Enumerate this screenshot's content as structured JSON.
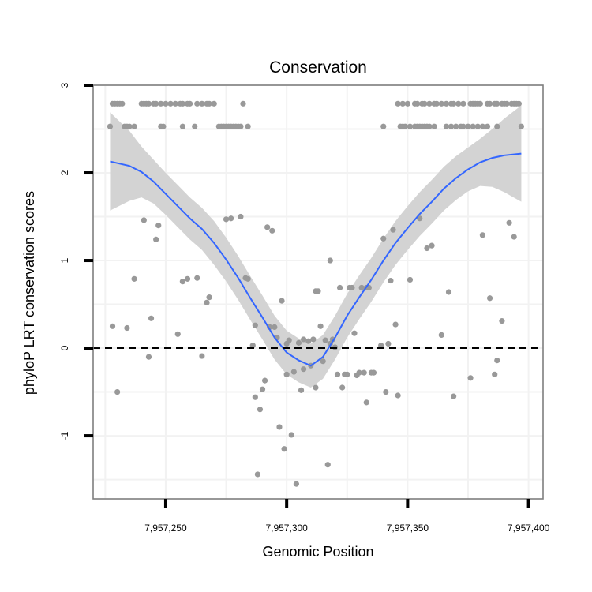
{
  "chart_data": {
    "type": "scatter",
    "title": "Conservation",
    "xlabel": "Genomic Position",
    "ylabel": "phyloP LRT conservation scores",
    "xlim": [
      7957220,
      7957406
    ],
    "ylim": [
      -1.72,
      3.0
    ],
    "x_ticks": [
      7957250,
      7957300,
      7957350,
      7957400
    ],
    "x_tick_labels": [
      "7,957,250",
      "7,957,300",
      "7,957,350",
      "7,957,400"
    ],
    "y_ticks": [
      -1,
      0,
      1,
      2,
      3
    ],
    "y_tick_labels": [
      "-1",
      "0",
      "1",
      "2",
      "3"
    ],
    "reference_line": {
      "y": 0,
      "style": "dashed"
    },
    "grid": true,
    "series": [
      {
        "name": "points",
        "kind": "scatter",
        "color": "#999999",
        "points": [
          [
            7957227,
            2.53
          ],
          [
            7957228,
            2.79
          ],
          [
            7957229,
            2.79
          ],
          [
            7957230,
            2.79
          ],
          [
            7957231,
            2.79
          ],
          [
            7957232,
            2.79
          ],
          [
            7957233,
            2.53
          ],
          [
            7957234,
            2.53
          ],
          [
            7957235,
            2.53
          ],
          [
            7957237,
            2.53
          ],
          [
            7957240,
            2.79
          ],
          [
            7957241,
            2.79
          ],
          [
            7957242,
            2.79
          ],
          [
            7957243,
            2.79
          ],
          [
            7957245,
            2.79
          ],
          [
            7957246,
            2.79
          ],
          [
            7957248,
            2.79
          ],
          [
            7957250,
            2.79
          ],
          [
            7957252,
            2.79
          ],
          [
            7957254,
            2.79
          ],
          [
            7957256,
            2.79
          ],
          [
            7957257,
            2.79
          ],
          [
            7957259,
            2.79
          ],
          [
            7957260,
            2.79
          ],
          [
            7957263,
            2.79
          ],
          [
            7957265,
            2.79
          ],
          [
            7957267,
            2.79
          ],
          [
            7957268,
            2.79
          ],
          [
            7957270,
            2.79
          ],
          [
            7957282,
            2.79
          ],
          [
            7957248,
            2.53
          ],
          [
            7957249,
            2.53
          ],
          [
            7957257,
            2.53
          ],
          [
            7957262,
            2.53
          ],
          [
            7957272,
            2.53
          ],
          [
            7957273,
            2.53
          ],
          [
            7957274,
            2.53
          ],
          [
            7957275,
            2.53
          ],
          [
            7957276,
            2.53
          ],
          [
            7957277,
            2.53
          ],
          [
            7957278,
            2.53
          ],
          [
            7957279,
            2.53
          ],
          [
            7957280,
            2.53
          ],
          [
            7957281,
            2.53
          ],
          [
            7957284,
            2.53
          ],
          [
            7957228,
            0.25
          ],
          [
            7957230,
            -0.5
          ],
          [
            7957234,
            0.23
          ],
          [
            7957237,
            0.79
          ],
          [
            7957241,
            1.46
          ],
          [
            7957243,
            -0.1
          ],
          [
            7957244,
            0.34
          ],
          [
            7957246,
            1.24
          ],
          [
            7957247,
            1.4
          ],
          [
            7957255,
            0.16
          ],
          [
            7957257,
            0.76
          ],
          [
            7957259,
            0.79
          ],
          [
            7957263,
            0.8
          ],
          [
            7957265,
            -0.09
          ],
          [
            7957267,
            0.52
          ],
          [
            7957268,
            0.58
          ],
          [
            7957275,
            1.47
          ],
          [
            7957277,
            1.48
          ],
          [
            7957281,
            1.5
          ],
          [
            7957283,
            0.8
          ],
          [
            7957284,
            0.79
          ],
          [
            7957286,
            0.03
          ],
          [
            7957287,
            0.26
          ],
          [
            7957287,
            -0.56
          ],
          [
            7957288,
            -1.44
          ],
          [
            7957289,
            -0.7
          ],
          [
            7957290,
            -0.47
          ],
          [
            7957291,
            -0.37
          ],
          [
            7957292,
            1.38
          ],
          [
            7957293,
            0.24
          ],
          [
            7957294,
            1.34
          ],
          [
            7957295,
            0.24
          ],
          [
            7957296,
            0.12
          ],
          [
            7957297,
            -0.9
          ],
          [
            7957298,
            0.54
          ],
          [
            7957299,
            -1.15
          ],
          [
            7957300,
            -0.3
          ],
          [
            7957300,
            0.05
          ],
          [
            7957301,
            0.09
          ],
          [
            7957302,
            -0.99
          ],
          [
            7957303,
            -0.27
          ],
          [
            7957304,
            -1.55
          ],
          [
            7957305,
            0.06
          ],
          [
            7957306,
            -0.48
          ],
          [
            7957307,
            -0.24
          ],
          [
            7957307,
            0.1
          ],
          [
            7957309,
            0.08
          ],
          [
            7957310,
            -0.2
          ],
          [
            7957311,
            0.1
          ],
          [
            7957312,
            0.65
          ],
          [
            7957312,
            -0.45
          ],
          [
            7957313,
            0.65
          ],
          [
            7957314,
            0.25
          ],
          [
            7957315,
            -0.15
          ],
          [
            7957316,
            0.09
          ],
          [
            7957317,
            -1.33
          ],
          [
            7957318,
            1.0
          ],
          [
            7957318,
            0.05
          ],
          [
            7957319,
            0.1
          ],
          [
            7957320,
            0.01
          ],
          [
            7957321,
            -0.3
          ],
          [
            7957322,
            0.69
          ],
          [
            7957323,
            -0.45
          ],
          [
            7957324,
            -0.3
          ],
          [
            7957325,
            -0.3
          ],
          [
            7957326,
            0.69
          ],
          [
            7957327,
            0.69
          ],
          [
            7957328,
            0.17
          ],
          [
            7957329,
            -0.31
          ],
          [
            7957330,
            -0.28
          ],
          [
            7957331,
            0.69
          ],
          [
            7957332,
            -0.28
          ],
          [
            7957333,
            0.69
          ],
          [
            7957333,
            -0.62
          ],
          [
            7957334,
            0.69
          ],
          [
            7957335,
            -0.28
          ],
          [
            7957336,
            -0.28
          ],
          [
            7957339,
            0.03
          ],
          [
            7957340,
            1.25
          ],
          [
            7957341,
            -0.5
          ],
          [
            7957342,
            0.05
          ],
          [
            7957343,
            0.77
          ],
          [
            7957344,
            1.35
          ],
          [
            7957345,
            0.27
          ],
          [
            7957346,
            -0.54
          ],
          [
            7957351,
            0.78
          ],
          [
            7957355,
            1.48
          ],
          [
            7957358,
            1.14
          ],
          [
            7957360,
            1.17
          ],
          [
            7957364,
            0.15
          ],
          [
            7957367,
            0.64
          ],
          [
            7957369,
            -0.55
          ],
          [
            7957376,
            -0.34
          ],
          [
            7957381,
            1.29
          ],
          [
            7957384,
            0.57
          ],
          [
            7957386,
            -0.3
          ],
          [
            7957387,
            -0.14
          ],
          [
            7957389,
            0.31
          ],
          [
            7957392,
            1.43
          ],
          [
            7957394,
            1.27
          ],
          [
            7957340,
            2.53
          ],
          [
            7957346,
            2.79
          ],
          [
            7957348,
            2.79
          ],
          [
            7957350,
            2.79
          ],
          [
            7957353,
            2.79
          ],
          [
            7957354,
            2.79
          ],
          [
            7957356,
            2.79
          ],
          [
            7957357,
            2.79
          ],
          [
            7957359,
            2.79
          ],
          [
            7957361,
            2.79
          ],
          [
            7957362,
            2.79
          ],
          [
            7957364,
            2.79
          ],
          [
            7957366,
            2.79
          ],
          [
            7957368,
            2.79
          ],
          [
            7957369,
            2.79
          ],
          [
            7957371,
            2.79
          ],
          [
            7957373,
            2.79
          ],
          [
            7957376,
            2.79
          ],
          [
            7957377,
            2.79
          ],
          [
            7957378,
            2.79
          ],
          [
            7957379,
            2.79
          ],
          [
            7957380,
            2.79
          ],
          [
            7957383,
            2.79
          ],
          [
            7957384,
            2.79
          ],
          [
            7957386,
            2.79
          ],
          [
            7957387,
            2.79
          ],
          [
            7957389,
            2.79
          ],
          [
            7957390,
            2.79
          ],
          [
            7957391,
            2.79
          ],
          [
            7957393,
            2.79
          ],
          [
            7957394,
            2.79
          ],
          [
            7957395,
            2.79
          ],
          [
            7957396,
            2.79
          ],
          [
            7957347,
            2.53
          ],
          [
            7957348,
            2.53
          ],
          [
            7957349,
            2.53
          ],
          [
            7957351,
            2.53
          ],
          [
            7957353,
            2.53
          ],
          [
            7957354,
            2.53
          ],
          [
            7957355,
            2.53
          ],
          [
            7957356,
            2.53
          ],
          [
            7957357,
            2.53
          ],
          [
            7957358,
            2.53
          ],
          [
            7957359,
            2.53
          ],
          [
            7957361,
            2.53
          ],
          [
            7957366,
            2.53
          ],
          [
            7957368,
            2.53
          ],
          [
            7957370,
            2.53
          ],
          [
            7957372,
            2.53
          ],
          [
            7957373,
            2.53
          ],
          [
            7957375,
            2.53
          ],
          [
            7957377,
            2.53
          ],
          [
            7957379,
            2.53
          ],
          [
            7957381,
            2.53
          ],
          [
            7957383,
            2.53
          ],
          [
            7957387,
            2.53
          ],
          [
            7957397,
            2.53
          ]
        ]
      },
      {
        "name": "loess smooth",
        "kind": "line",
        "color": "#3366FF",
        "band_color": "#d3d3d3",
        "points": [
          [
            7957227,
            2.13
          ],
          [
            7957235,
            2.08
          ],
          [
            7957240,
            2.01
          ],
          [
            7957245,
            1.9
          ],
          [
            7957250,
            1.76
          ],
          [
            7957255,
            1.62
          ],
          [
            7957260,
            1.48
          ],
          [
            7957265,
            1.36
          ],
          [
            7957270,
            1.2
          ],
          [
            7957275,
            1.01
          ],
          [
            7957280,
            0.8
          ],
          [
            7957285,
            0.57
          ],
          [
            7957290,
            0.35
          ],
          [
            7957295,
            0.12
          ],
          [
            7957300,
            -0.05
          ],
          [
            7957305,
            -0.14
          ],
          [
            7957310,
            -0.2
          ],
          [
            7957315,
            -0.1
          ],
          [
            7957320,
            0.12
          ],
          [
            7957325,
            0.37
          ],
          [
            7957330,
            0.58
          ],
          [
            7957335,
            0.78
          ],
          [
            7957340,
            1.0
          ],
          [
            7957345,
            1.2
          ],
          [
            7957350,
            1.37
          ],
          [
            7957355,
            1.53
          ],
          [
            7957360,
            1.67
          ],
          [
            7957365,
            1.82
          ],
          [
            7957370,
            1.94
          ],
          [
            7957375,
            2.04
          ],
          [
            7957380,
            2.12
          ],
          [
            7957385,
            2.17
          ],
          [
            7957390,
            2.2
          ],
          [
            7957397,
            2.22
          ]
        ],
        "band_lower": [
          1.57,
          1.68,
          1.72,
          1.65,
          1.52,
          1.38,
          1.24,
          1.12,
          0.95,
          0.76,
          0.55,
          0.32,
          0.1,
          -0.13,
          -0.3,
          -0.39,
          -0.45,
          -0.35,
          -0.13,
          0.12,
          0.33,
          0.53,
          0.75,
          0.95,
          1.12,
          1.28,
          1.42,
          1.57,
          1.69,
          1.79,
          1.85,
          1.84,
          1.78,
          1.67
        ],
        "band_upper": [
          2.69,
          2.48,
          2.3,
          2.15,
          2.0,
          1.86,
          1.72,
          1.6,
          1.45,
          1.26,
          1.05,
          0.82,
          0.6,
          0.37,
          0.2,
          0.11,
          0.05,
          0.15,
          0.37,
          0.62,
          0.83,
          1.03,
          1.25,
          1.45,
          1.62,
          1.78,
          1.92,
          2.07,
          2.19,
          2.29,
          2.39,
          2.5,
          2.62,
          2.77
        ]
      }
    ]
  }
}
